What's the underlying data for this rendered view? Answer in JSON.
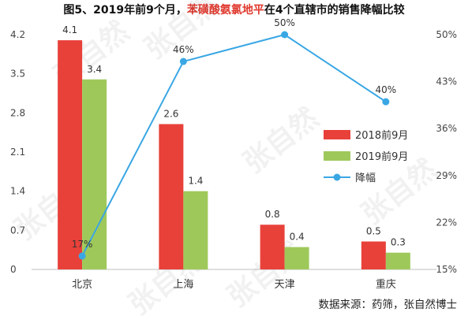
{
  "title": {
    "prefix": "图5、2019年前9个月，",
    "highlight": "苯磺酸氨氯地平",
    "suffix": "在4个直辖市的销售降幅比较"
  },
  "source": "数据来源：药筛，张自然博士",
  "watermark": "张自然",
  "colors": {
    "bar2018": "#e8413a",
    "bar2019": "#9ec95a",
    "line": "#3aa7e4",
    "highlight": "#e03a2f"
  },
  "chart_data": {
    "type": "bar+line",
    "categories": [
      "北京",
      "上海",
      "天津",
      "重庆"
    ],
    "series": [
      {
        "name": "2018前9月",
        "type": "bar",
        "axis": "left",
        "values": [
          4.1,
          2.6,
          0.8,
          0.5
        ],
        "labels": [
          "4.1",
          "2.6",
          "0.8",
          "0.5"
        ]
      },
      {
        "name": "2019前9月",
        "type": "bar",
        "axis": "left",
        "values": [
          3.4,
          1.4,
          0.4,
          0.3
        ],
        "labels": [
          "3.4",
          "1.4",
          "0.4",
          "0.3"
        ]
      },
      {
        "name": "降幅",
        "type": "line",
        "axis": "right",
        "values": [
          17,
          46,
          50,
          40
        ],
        "labels": [
          "17%",
          "46%",
          "50%",
          "40%"
        ]
      }
    ],
    "y_left": {
      "min": 0,
      "max": 4.2,
      "ticks": [
        "0",
        "0.7",
        "1.4",
        "2.1",
        "2.8",
        "3.5",
        "4.2"
      ]
    },
    "y_right": {
      "min": 15,
      "max": 50,
      "ticks": [
        "15%",
        "22%",
        "29%",
        "36%",
        "43%",
        "50%"
      ]
    },
    "legend_position": "right",
    "grid": false
  }
}
